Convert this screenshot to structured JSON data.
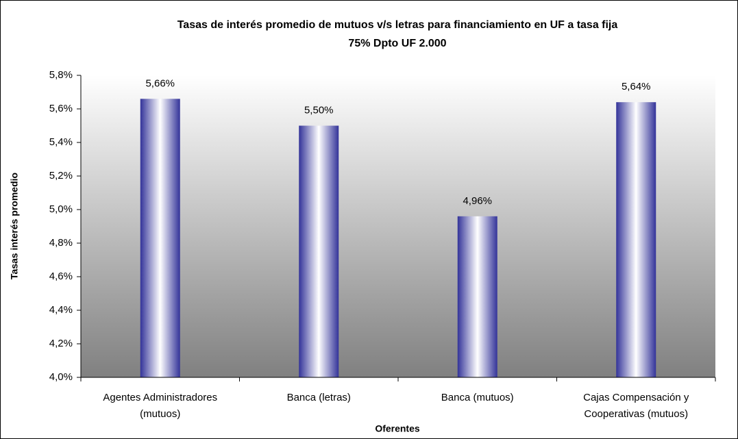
{
  "chart_data": {
    "type": "bar",
    "title": "Tasas de interés promedio de mutuos v/s letras para financiamiento en UF a tasa fija",
    "subtitle": "75% Dpto UF 2.000",
    "x_label": "Oferentes",
    "y_label": "Tasas interés promedio",
    "categories": [
      [
        "Agentes Administradores",
        "(mutuos)"
      ],
      [
        "Banca (letras)"
      ],
      [
        "Banca (mutuos)"
      ],
      [
        "Cajas Compensación y",
        "Cooperativas (mutuos)"
      ]
    ],
    "values": [
      5.66,
      5.5,
      4.96,
      5.64
    ],
    "value_labels": [
      "5,66%",
      "5,50%",
      "4,96%",
      "5,64%"
    ],
    "color": "#333399",
    "ylim": [
      4.0,
      5.8
    ],
    "yticks": [
      {
        "value": 4.0,
        "label": "4,0%"
      },
      {
        "value": 4.2,
        "label": "4,2%"
      },
      {
        "value": 4.4,
        "label": "4,4%"
      },
      {
        "value": 4.6,
        "label": "4,6%"
      },
      {
        "value": 4.8,
        "label": "4,8%"
      },
      {
        "value": 5.0,
        "label": "5,0%"
      },
      {
        "value": 5.2,
        "label": "5,2%"
      },
      {
        "value": 5.4,
        "label": "5,4%"
      },
      {
        "value": 5.6,
        "label": "5,6%"
      },
      {
        "value": 5.8,
        "label": "5,8%"
      }
    ]
  }
}
